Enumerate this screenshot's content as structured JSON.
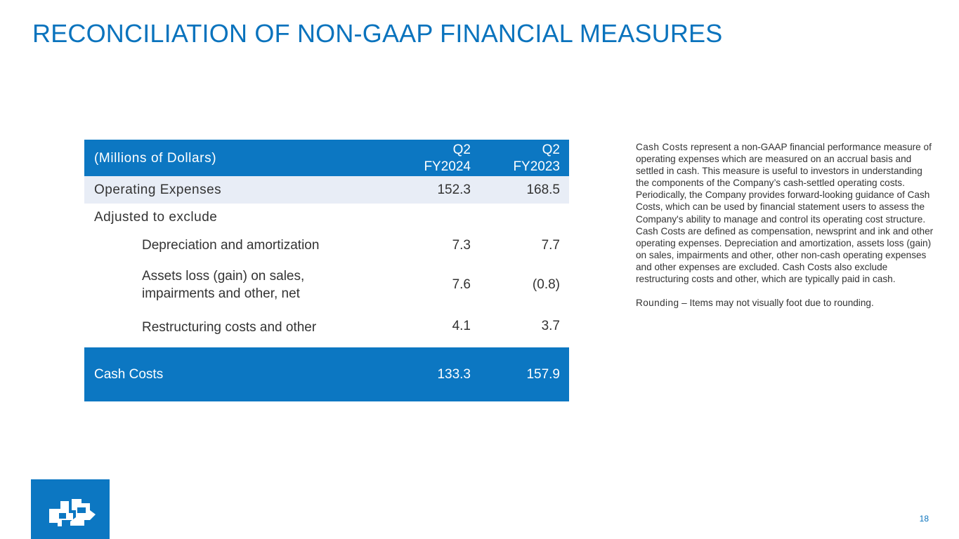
{
  "slide": {
    "title": "RECONCILIATION OF NON-GAAP FINANCIAL MEASURES",
    "page_number": "18"
  },
  "table": {
    "header": {
      "label": "(Millions of Dollars)",
      "col1_line1": "Q2",
      "col1_line2": "FY2024",
      "col2_line1": "Q2",
      "col2_line2": "FY2023"
    },
    "operating_expenses": {
      "label": "Operating Expenses",
      "q2_fy2024": "152.3",
      "q2_fy2023": "168.5"
    },
    "adjusted_label": "Adjusted to exclude",
    "depreciation": {
      "label": "Depreciation and amortization",
      "q2_fy2024": "7.3",
      "q2_fy2023": "7.7"
    },
    "assets_loss": {
      "label_line1": "Assets loss (gain) on sales,",
      "label_line2": "impairments and other, net",
      "q2_fy2024": "7.6",
      "q2_fy2023": "(0.8)"
    },
    "restructuring": {
      "label": "Restructuring costs and other",
      "q2_fy2024": "4.1",
      "q2_fy2023": "3.7"
    },
    "cash_costs": {
      "label": "Cash Costs",
      "q2_fy2024": "133.3",
      "q2_fy2023": "157.9"
    }
  },
  "notes": {
    "cash_costs_term": "Cash Costs",
    "cash_costs_body": " represent a non-GAAP financial performance measure of operating expenses which are measured on an accrual basis and settled in cash. This measure is useful to investors in understanding the components of the Company’s cash-settled operating costs. Periodically, the Company provides forward-looking guidance of Cash Costs, which can be used by financial statement users to assess the Company's ability to manage and control its operating cost structure. Cash Costs are defined as compensation, newsprint and ink and other operating expenses. Depreciation and amortization, assets loss (gain) on sales, impairments and other, other non-cash operating expenses and other expenses are excluded. Cash Costs also exclude restructuring costs and other, which are typically paid in cash.",
    "rounding_term": "Rounding",
    "rounding_dash": " – ",
    "rounding_body": "Items may not visually foot due to rounding."
  },
  "colors": {
    "brand_blue": "#0c77c2",
    "title_blue": "#0a73bd",
    "row_tint": "#e8edf6"
  },
  "logo": {
    "icon": "company-logo-icon"
  }
}
